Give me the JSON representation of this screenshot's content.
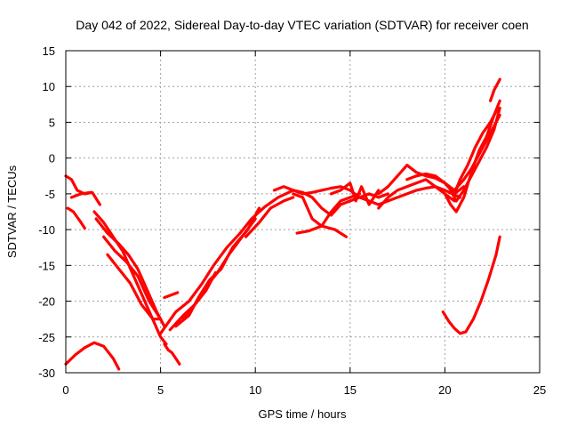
{
  "chart_data": {
    "type": "line",
    "title": "Day 042 of 2022, Sidereal Day-to-day VTEC variation (SDTVAR) for receiver coen",
    "xlabel": "GPS time / hours",
    "ylabel": "SDTVAR / TECUs",
    "xlim": [
      0,
      25
    ],
    "ylim": [
      -30,
      15
    ],
    "xticks": [
      0,
      5,
      10,
      15,
      20,
      25
    ],
    "yticks": [
      15,
      10,
      5,
      0,
      -5,
      -10,
      -15,
      -20,
      -25,
      -30
    ],
    "grid": true,
    "color": "#ff0000",
    "series": [
      {
        "name": "s1",
        "x": [
          0,
          0.5,
          1,
          1.5,
          2,
          2.5,
          2.8
        ],
        "y": [
          -28.8,
          -27.5,
          -26.5,
          -25.8,
          -26.3,
          -28,
          -29.5
        ]
      },
      {
        "name": "s2",
        "x": [
          0,
          0.3,
          0.6,
          1,
          1.4,
          1.8
        ],
        "y": [
          -2.5,
          -3,
          -4.5,
          -5,
          -4.8,
          -6.5
        ]
      },
      {
        "name": "s3",
        "x": [
          0.1,
          0.4,
          0.8,
          1.0
        ],
        "y": [
          -7,
          -7.5,
          -9,
          -9.8
        ]
      },
      {
        "name": "s4",
        "x": [
          0.3,
          0.8,
          1.3
        ],
        "y": [
          -5.5,
          -5,
          -4.8
        ]
      },
      {
        "name": "s5",
        "x": [
          1.5,
          2,
          2.5,
          3,
          3.5,
          4,
          4.5,
          5,
          5.3
        ],
        "y": [
          -7.5,
          -9,
          -11,
          -13,
          -16,
          -19,
          -22,
          -25,
          -26
        ]
      },
      {
        "name": "s6",
        "x": [
          1.6,
          2.2,
          2.8,
          3.3,
          3.8,
          4.3,
          4.8,
          5.2
        ],
        "y": [
          -8.5,
          -10.5,
          -12,
          -13.5,
          -15.5,
          -18.5,
          -21.5,
          -23.5
        ]
      },
      {
        "name": "s7",
        "x": [
          2,
          2.6,
          3.2,
          3.8,
          4.4,
          5.0
        ],
        "y": [
          -11,
          -13,
          -14.5,
          -16.5,
          -20,
          -22.5
        ]
      },
      {
        "name": "s8",
        "x": [
          2.2,
          2.8,
          3.4,
          4.0,
          4.6,
          5.0
        ],
        "y": [
          -13.5,
          -15.5,
          -17.5,
          -20.5,
          -22.5,
          -22.5
        ]
      },
      {
        "name": "s9",
        "x": [
          5.2,
          5.4,
          5.6,
          5.8,
          6.0
        ],
        "y": [
          -26,
          -26.8,
          -27.2,
          -28,
          -28.8
        ]
      },
      {
        "name": "s10",
        "x": [
          5.2,
          5.5,
          5.9
        ],
        "y": [
          -19.5,
          -19.2,
          -18.8
        ]
      },
      {
        "name": "s11",
        "x": [
          5,
          5.8,
          6.5,
          7.2,
          7.8,
          8.5,
          9.2,
          9.8,
          10.5,
          11.2,
          12
        ],
        "y": [
          -24.5,
          -21.5,
          -20,
          -17.5,
          -15,
          -12.5,
          -10.5,
          -8.5,
          -6.8,
          -5.5,
          -4.5
        ]
      },
      {
        "name": "s12",
        "x": [
          5.5,
          6.2,
          6.8,
          7.4,
          8.0,
          8.6,
          9.3,
          10
        ],
        "y": [
          -24,
          -22,
          -20.5,
          -18,
          -16,
          -13.5,
          -11,
          -8.5
        ]
      },
      {
        "name": "s13",
        "x": [
          5.8,
          6.5,
          7.0,
          7.6,
          8.2,
          8.8,
          9.6,
          10.2
        ],
        "y": [
          -23.5,
          -22,
          -19.5,
          -17,
          -15.5,
          -12.5,
          -10,
          -7
        ]
      },
      {
        "name": "s14",
        "x": [
          6.2,
          6.8,
          7.4,
          7.9
        ],
        "y": [
          -22.5,
          -20.5,
          -18.5,
          -16
        ]
      },
      {
        "name": "s15",
        "x": [
          9.5,
          10.2,
          10.8,
          11.5,
          12
        ],
        "y": [
          -11,
          -9,
          -7,
          -6,
          -5.5
        ]
      },
      {
        "name": "s16",
        "x": [
          11,
          11.5,
          12,
          12.5,
          13,
          13.5,
          14,
          14.5,
          15,
          15.5,
          16,
          16.5,
          17
        ],
        "y": [
          -4.5,
          -4,
          -4.5,
          -5,
          -4.8,
          -4.5,
          -4.2,
          -4,
          -4.5,
          -5.5,
          -5,
          -5.5,
          -5
        ]
      },
      {
        "name": "s17",
        "x": [
          12,
          12.5,
          13,
          13.5,
          14,
          14.5,
          15,
          15.5
        ],
        "y": [
          -5,
          -5.5,
          -8.5,
          -9.5,
          -7.5,
          -6,
          -5.5,
          -5
        ]
      },
      {
        "name": "s18",
        "x": [
          12,
          12.5,
          13,
          13.5,
          14,
          14.5,
          15,
          15.5,
          16,
          16.5,
          17
        ],
        "y": [
          -4.5,
          -4.8,
          -5.5,
          -7,
          -8,
          -6.5,
          -6,
          -5.5,
          -6,
          -6.5,
          -6
        ]
      },
      {
        "name": "s19",
        "x": [
          12.2,
          12.8,
          13.5,
          14.2,
          14.8
        ],
        "y": [
          -10.5,
          -10.2,
          -9.5,
          -10,
          -11
        ]
      },
      {
        "name": "s20",
        "x": [
          14,
          14.5,
          15,
          15.3,
          15.6,
          16,
          16.5
        ],
        "y": [
          -5,
          -4.5,
          -3.5,
          -6,
          -4,
          -6.5,
          -4.5
        ]
      },
      {
        "name": "s21",
        "x": [
          16.5,
          17,
          17.5,
          18,
          18.5,
          19,
          19.5,
          20,
          20.5
        ],
        "y": [
          -7,
          -5.5,
          -4.5,
          -4,
          -3.5,
          -3,
          -4,
          -5,
          -6
        ]
      },
      {
        "name": "s22",
        "x": [
          16.5,
          17,
          17.5,
          18,
          18.5,
          19,
          19.5,
          20,
          20.5,
          21
        ],
        "y": [
          -5,
          -4,
          -2.5,
          -1,
          -2,
          -2.5,
          -2.8,
          -3.5,
          -4.5,
          -3
        ]
      },
      {
        "name": "s23",
        "x": [
          17,
          17.5,
          18,
          18.5,
          19,
          19.5,
          20,
          20.4,
          20.8
        ],
        "y": [
          -6,
          -5.5,
          -5,
          -4.5,
          -4.2,
          -4,
          -4.5,
          -5,
          -5.5
        ]
      },
      {
        "name": "s24",
        "x": [
          18,
          18.5,
          19,
          19.5,
          20,
          20.5,
          21
        ],
        "y": [
          -3,
          -2.5,
          -2.2,
          -2.5,
          -3.5,
          -5,
          -4
        ]
      },
      {
        "name": "s25",
        "x": [
          20,
          20.3,
          20.6,
          21,
          21.4,
          21.8,
          22.2,
          22.6,
          22.9
        ],
        "y": [
          -5,
          -6.5,
          -7.5,
          -5.5,
          -2,
          1,
          3,
          6,
          8
        ]
      },
      {
        "name": "s26",
        "x": [
          20.2,
          20.6,
          21,
          21.4,
          21.8,
          22.2,
          22.6,
          22.9
        ],
        "y": [
          -4,
          -6,
          -4.5,
          -2.5,
          -0.5,
          1.5,
          4,
          7
        ]
      },
      {
        "name": "s27",
        "x": [
          20.5,
          20.8,
          21.2,
          21.6,
          22,
          22.4,
          22.8
        ],
        "y": [
          -5,
          -3,
          -1,
          1.5,
          3.5,
          5,
          7
        ]
      },
      {
        "name": "s28",
        "x": [
          21,
          21.4,
          21.8,
          22.2,
          22.6,
          22.9
        ],
        "y": [
          -3,
          -1.5,
          0.5,
          2.5,
          4.5,
          6
        ]
      },
      {
        "name": "s29",
        "x": [
          22.4,
          22.6,
          22.8,
          22.9
        ],
        "y": [
          8,
          9.5,
          10.5,
          11
        ]
      },
      {
        "name": "s30",
        "x": [
          19.9,
          20.2,
          20.5,
          20.8,
          21.1,
          21.5,
          21.9,
          22.3,
          22.7,
          22.9
        ],
        "y": [
          -21.5,
          -22.8,
          -23.8,
          -24.5,
          -24.3,
          -22.5,
          -20,
          -17,
          -13.5,
          -11
        ]
      }
    ]
  }
}
